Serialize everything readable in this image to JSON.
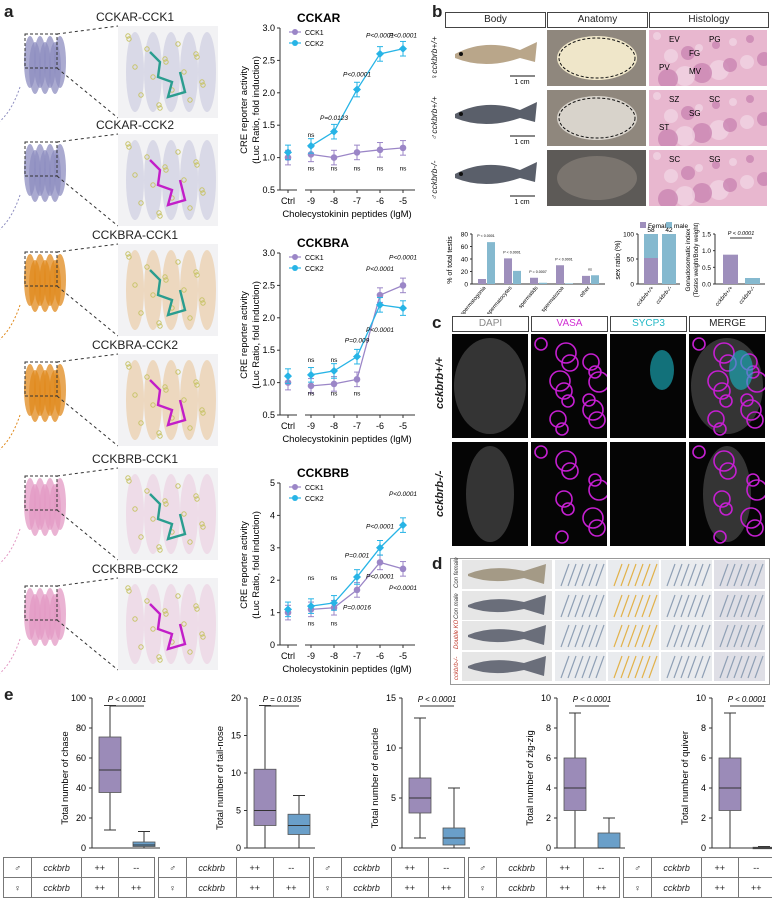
{
  "panel_labels": {
    "a": "a",
    "b": "b",
    "c": "c",
    "d": "d",
    "e": "e"
  },
  "panel_a": {
    "structures": [
      {
        "title": "CCKAR-CCK1",
        "color": "#8e8ec0",
        "ligand": "#2a9d8f"
      },
      {
        "title": "CCKAR-CCK2",
        "color": "#8e8ec0",
        "ligand": "#c21ec8"
      },
      {
        "title": "CCKBRA-CCK1",
        "color": "#e08a1e",
        "ligand": "#2a9d8f"
      },
      {
        "title": "CCKBRA-CCK2",
        "color": "#e08a1e",
        "ligand": "#c21ec8"
      },
      {
        "title": "CCKBRB-CCK1",
        "color": "#e39ac4",
        "ligand": "#2a9d8f"
      },
      {
        "title": "CCKBRB-CCK2",
        "color": "#e39ac4",
        "ligand": "#c21ec8"
      }
    ],
    "x_ticks": [
      "Ctrl",
      "-9",
      "-8",
      "-7",
      "-6",
      "-5"
    ],
    "xlabel": "Cholecystokinin peptides (lgM)",
    "ylabel1": "CRE reporter activity",
    "ylabel2": "(Luc Ratio, fold induction)",
    "legend": [
      "CCK1",
      "CCK2"
    ],
    "colors": {
      "cck1": "#9b86c7",
      "cck2": "#27b4e6"
    }
  },
  "chart_data": [
    {
      "type": "line",
      "title": "CCKAR",
      "xlabel": "Cholecystokinin peptides (lgM)",
      "ylabel": "CRE reporter activity (Luc Ratio, fold induction)",
      "ylim": [
        0.5,
        3.0
      ],
      "yticks": [
        "0.5",
        "1.0",
        "1.5",
        "2.0",
        "2.5",
        "3.0"
      ],
      "x": [
        "Ctrl",
        "-9",
        "-8",
        "-7",
        "-6",
        "-5"
      ],
      "series": [
        {
          "name": "CCK1",
          "values": [
            1.0,
            1.05,
            1.0,
            1.08,
            1.12,
            1.15
          ]
        },
        {
          "name": "CCK2",
          "values": [
            1.08,
            1.18,
            1.4,
            2.05,
            2.6,
            2.68
          ]
        }
      ],
      "annotations": [
        {
          "text": "P<0.0001",
          "x": "-6",
          "y": 2.85
        },
        {
          "text": "P<0.0001",
          "x": "-5",
          "y": 2.85
        },
        {
          "text": "P<0.0001",
          "x": "-7",
          "y": 2.25
        },
        {
          "text": "P=0.0123",
          "x": "-8",
          "y": 1.58
        },
        {
          "text": "ns",
          "x": "-9",
          "y": 1.32
        },
        {
          "text": "ns",
          "x": "-9",
          "y": 0.8
        },
        {
          "text": "ns",
          "x": "-8",
          "y": 0.8
        },
        {
          "text": "ns",
          "x": "-7",
          "y": 0.8
        },
        {
          "text": "ns",
          "x": "-6",
          "y": 0.8
        },
        {
          "text": "ns",
          "x": "-5",
          "y": 0.8
        }
      ]
    },
    {
      "type": "line",
      "title": "CCKBRA",
      "xlabel": "Cholecystokinin peptides (lgM)",
      "ylabel": "CRE reporter activity (Luc Ratio, fold induction)",
      "ylim": [
        0.5,
        3.0
      ],
      "yticks": [
        "0.5",
        "1.0",
        "1.5",
        "2.0",
        "2.5",
        "3.0"
      ],
      "x": [
        "Ctrl",
        "-9",
        "-8",
        "-7",
        "-6",
        "-5"
      ],
      "series": [
        {
          "name": "CCK1",
          "values": [
            1.0,
            0.95,
            0.98,
            1.05,
            2.35,
            2.5
          ]
        },
        {
          "name": "CCK2",
          "values": [
            1.1,
            1.12,
            1.18,
            1.4,
            2.2,
            2.15
          ]
        }
      ],
      "annotations": [
        {
          "text": "P<0.0001",
          "x": "-5",
          "y": 2.9
        },
        {
          "text": "P<0.0001",
          "x": "-6",
          "y": 2.72
        },
        {
          "text": "P=0.009",
          "x": "-7",
          "y": 1.62
        },
        {
          "text": "P<0.0001",
          "x": "-6",
          "y": 1.78
        },
        {
          "text": "ns",
          "x": "-9",
          "y": 1.32
        },
        {
          "text": "ns",
          "x": "-8",
          "y": 1.32
        },
        {
          "text": "ns",
          "x": "-9",
          "y": 0.8
        },
        {
          "text": "ns",
          "x": "-8",
          "y": 0.8
        },
        {
          "text": "ns",
          "x": "-7",
          "y": 0.8
        }
      ]
    },
    {
      "type": "line",
      "title": "CCKBRB",
      "xlabel": "Cholecystokinin peptides (lgM)",
      "ylabel": "CRE reporter activity (Luc Ratio, fold induction)",
      "ylim": [
        0,
        5
      ],
      "yticks": [
        "0",
        "1",
        "2",
        "3",
        "4",
        "5"
      ],
      "x": [
        "Ctrl",
        "-9",
        "-8",
        "-7",
        "-6",
        "-5"
      ],
      "series": [
        {
          "name": "CCK1",
          "values": [
            1.0,
            1.1,
            1.15,
            1.7,
            2.55,
            2.35
          ]
        },
        {
          "name": "CCK2",
          "values": [
            1.1,
            1.2,
            1.3,
            2.1,
            3.0,
            3.7
          ]
        }
      ],
      "annotations": [
        {
          "text": "P<0.0001",
          "x": "-5",
          "y": 4.6
        },
        {
          "text": "P<0.0001",
          "x": "-6",
          "y": 3.6
        },
        {
          "text": "P=0.001",
          "x": "-7",
          "y": 2.7
        },
        {
          "text": "P<0.0001",
          "x": "-6",
          "y": 2.05
        },
        {
          "text": "P<0.0001",
          "x": "-5",
          "y": 1.7
        },
        {
          "text": "P=0.0016",
          "x": "-7",
          "y": 1.1
        },
        {
          "text": "ns",
          "x": "-9",
          "y": 2.0
        },
        {
          "text": "ns",
          "x": "-8",
          "y": 2.0
        },
        {
          "text": "ns",
          "x": "-9",
          "y": 0.6
        },
        {
          "text": "ns",
          "x": "-8",
          "y": 0.6
        }
      ]
    },
    {
      "type": "bar",
      "title": "",
      "xlabel": "",
      "ylabel": "% of total testis",
      "ylim": [
        0,
        80
      ],
      "yticks": [
        "0",
        "20",
        "40",
        "60",
        "80"
      ],
      "categories": [
        "spermatogonia",
        "spermatocytes",
        "spermatids",
        "spermatozoa",
        "other"
      ],
      "series": [
        {
          "name": "cckbrb+/+",
          "values": [
            8,
            41,
            10,
            30,
            13
          ]
        },
        {
          "name": "cckbrb-/-",
          "values": [
            67,
            21,
            2,
            1,
            14
          ]
        }
      ],
      "annotations": [
        {
          "text": "P < 0.0001",
          "category": "spermatogonia"
        },
        {
          "text": "P < 0.0001",
          "category": "spermatocytes"
        },
        {
          "text": "P = 0.0007",
          "category": "spermatids"
        },
        {
          "text": "P < 0.0001",
          "category": "spermatozoa"
        },
        {
          "text": "ns",
          "category": "other"
        }
      ]
    },
    {
      "type": "bar",
      "title": "",
      "ylabel": "sex ratio (%)",
      "ylim": [
        0,
        100
      ],
      "yticks": [
        "0",
        "50",
        "100"
      ],
      "categories": [
        "cckbrb+/+",
        "cckbrb-/-"
      ],
      "counts": [
        "58",
        "42"
      ],
      "legend": [
        "Female",
        "male"
      ],
      "series": [
        {
          "name": "Female",
          "values": [
            52,
            0
          ]
        },
        {
          "name": "male",
          "values": [
            48,
            100
          ]
        }
      ]
    },
    {
      "type": "bar",
      "title": "",
      "ylabel": "Gonadosomatic index",
      "ylabel2": "(Testes weight/Body weight)",
      "ylim": [
        0,
        1.5
      ],
      "yticks": [
        "0.0",
        "0.5",
        "1.0",
        "1.5"
      ],
      "categories": [
        "cckbrb+/+",
        "cckbrb-/-"
      ],
      "series": [
        {
          "name": "GSI",
          "values": [
            0.88,
            0.18
          ]
        }
      ],
      "annotations": [
        {
          "text": "P < 0.0001"
        }
      ]
    },
    {
      "type": "box",
      "title": "",
      "ylabel": "Total number of chase",
      "ylim": [
        0,
        100
      ],
      "yticks": [
        "0",
        "20",
        "40",
        "60",
        "80",
        "100"
      ],
      "categories": [
        "++",
        "--"
      ],
      "annotation": "P < 0.0001",
      "boxes": [
        {
          "min": 12,
          "q1": 37,
          "median": 52,
          "q3": 74,
          "max": 95
        },
        {
          "min": 0,
          "q1": 1,
          "median": 2,
          "q3": 4,
          "max": 11
        }
      ]
    },
    {
      "type": "box",
      "title": "",
      "ylabel": "Total number of tail-nose",
      "ylim": [
        0,
        20
      ],
      "yticks": [
        "0",
        "5",
        "10",
        "15",
        "20"
      ],
      "categories": [
        "++",
        "--"
      ],
      "annotation": "P = 0.0135",
      "boxes": [
        {
          "min": 0,
          "q1": 3,
          "median": 5,
          "q3": 10.5,
          "max": 19
        },
        {
          "min": 0,
          "q1": 1.8,
          "median": 3,
          "q3": 4.5,
          "max": 7
        }
      ]
    },
    {
      "type": "box",
      "title": "",
      "ylabel": "Total number of encircle",
      "ylim": [
        0,
        15
      ],
      "yticks": [
        "0",
        "5",
        "10",
        "15"
      ],
      "categories": [
        "++",
        "--"
      ],
      "annotation": "P < 0.0001",
      "boxes": [
        {
          "min": 1,
          "q1": 3.5,
          "median": 5,
          "q3": 7,
          "max": 13
        },
        {
          "min": 0,
          "q1": 0.3,
          "median": 1,
          "q3": 2,
          "max": 6
        }
      ]
    },
    {
      "type": "box",
      "title": "",
      "ylabel": "Total number of zig-zig",
      "ylim": [
        0,
        10
      ],
      "yticks": [
        "0",
        "2",
        "4",
        "6",
        "8",
        "10"
      ],
      "categories": [
        "++",
        "--"
      ],
      "annotation": "P < 0.0001",
      "boxes": [
        {
          "min": 0,
          "q1": 2.5,
          "median": 4,
          "q3": 6,
          "max": 9
        },
        {
          "min": 0,
          "q1": 0,
          "median": 0,
          "q3": 1,
          "max": 2
        }
      ]
    },
    {
      "type": "box",
      "title": "",
      "ylabel": "Total number of quiver",
      "ylim": [
        0,
        10
      ],
      "yticks": [
        "0",
        "2",
        "4",
        "6",
        "8",
        "10"
      ],
      "categories": [
        "++",
        "--"
      ],
      "annotation": "P < 0.0001",
      "boxes": [
        {
          "min": 0,
          "q1": 2.5,
          "median": 4,
          "q3": 6,
          "max": 9
        },
        {
          "min": 0,
          "q1": 0,
          "median": 0,
          "q3": 0.05,
          "max": 0.1
        }
      ]
    }
  ],
  "panel_b": {
    "headers": [
      "Body",
      "Anatomy",
      "Histology"
    ],
    "row_labels": [
      "♀cckbrb+/+",
      "♂cckbrb+/+",
      "♂cckbrb-/-"
    ],
    "scale": "1 cm",
    "histology_labels": [
      [
        "EV",
        "PG",
        "FG",
        "PV",
        "MV"
      ],
      [
        "SZ",
        "SC",
        "SG",
        "ST"
      ],
      [
        "SC",
        "SG"
      ]
    ],
    "bar_counts": [
      "58",
      "42"
    ],
    "sex_x": [
      "cckbrb+/+",
      "cckbrb-/-"
    ],
    "legend": [
      "Female",
      "male"
    ]
  },
  "panel_c": {
    "headers": [
      "DAPI",
      "VASA",
      "SYCP3",
      "MERGE"
    ],
    "header_colors": [
      "#888888",
      "#d12fd3",
      "#24b8c6",
      "#222222"
    ],
    "row_labels": [
      "cckbrb+/+",
      "cckbrb-/-"
    ]
  },
  "panel_d": {
    "row_labels": [
      "Con female",
      "Con male",
      "Double KO",
      "cckbrb-/-"
    ],
    "row_colors": [
      "#333333",
      "#333333",
      "#c0392b",
      "#c0392b"
    ]
  },
  "panel_e": {
    "male_symbol": "♂",
    "female_symbol": "♀",
    "gene": "cckbrb",
    "male_row": [
      "++",
      "--"
    ],
    "female_row": [
      "++",
      "++"
    ],
    "box_color": "#9b8bb8",
    "box_color2": "#6a9fc9"
  }
}
